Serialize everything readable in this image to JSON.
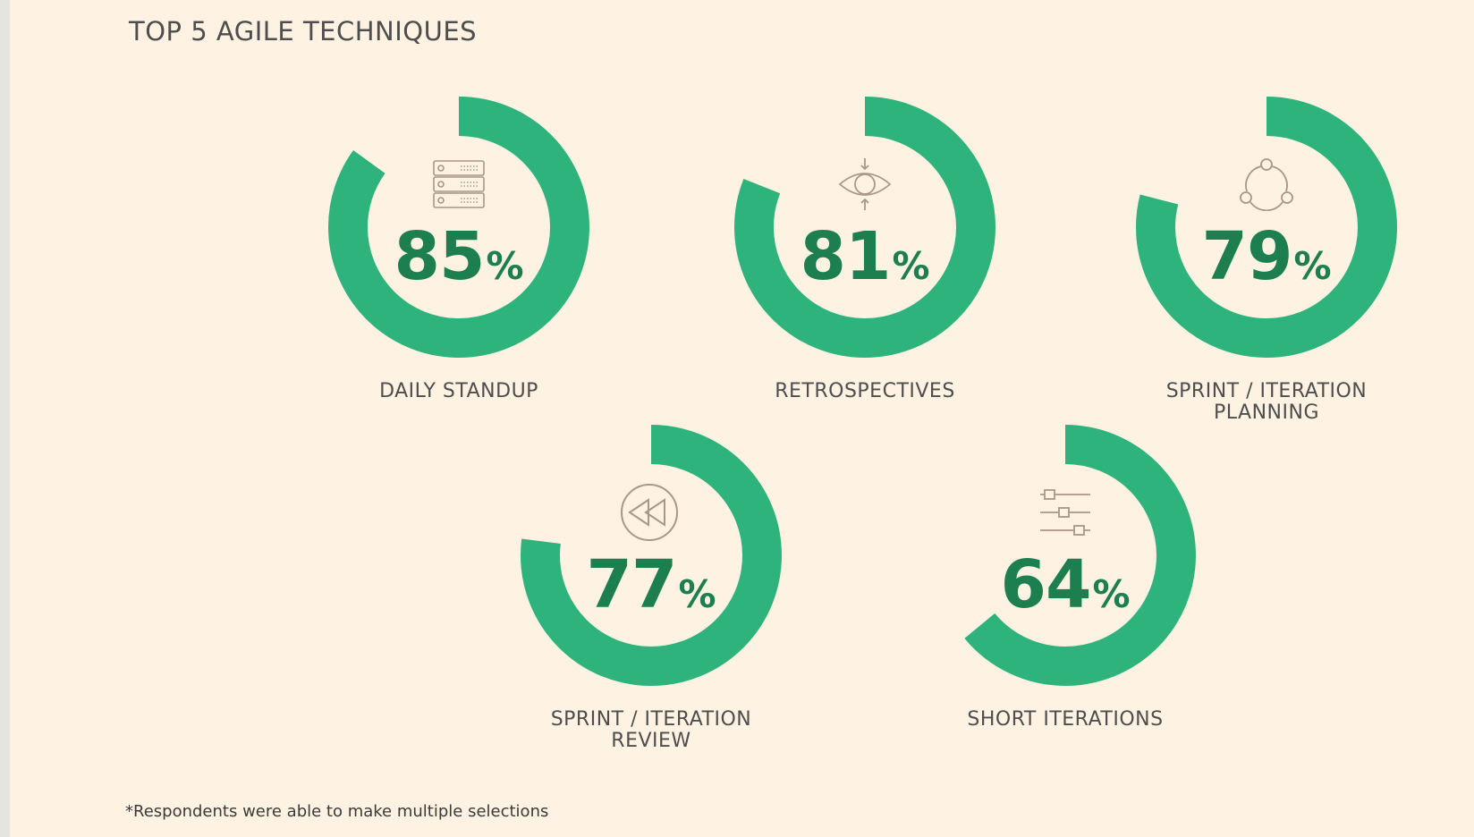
{
  "header": {
    "title": "TOP 5 AGILE TECHNIQUES"
  },
  "footer": {
    "note": "*Respondents were able to make multiple selections"
  },
  "colors": {
    "ring": "#2eb37c",
    "value_text": "#1d7f4f",
    "icon": "#a8978a",
    "background": "#fef2e2"
  },
  "chart_data": {
    "type": "pie",
    "unit": "%",
    "items": [
      {
        "label": "DAILY STANDUP",
        "value": 85,
        "icon": "server-stack-icon"
      },
      {
        "label": "RETROSPECTIVES",
        "value": 81,
        "icon": "eye-focus-icon"
      },
      {
        "label": "SPRINT / ITERATION\nPLANNING",
        "value": 79,
        "icon": "cycle-nodes-icon"
      },
      {
        "label": "SPRINT / ITERATION\nREVIEW",
        "value": 77,
        "icon": "rewind-icon"
      },
      {
        "label": "SHORT ITERATIONS",
        "value": 64,
        "icon": "sliders-icon"
      }
    ]
  }
}
